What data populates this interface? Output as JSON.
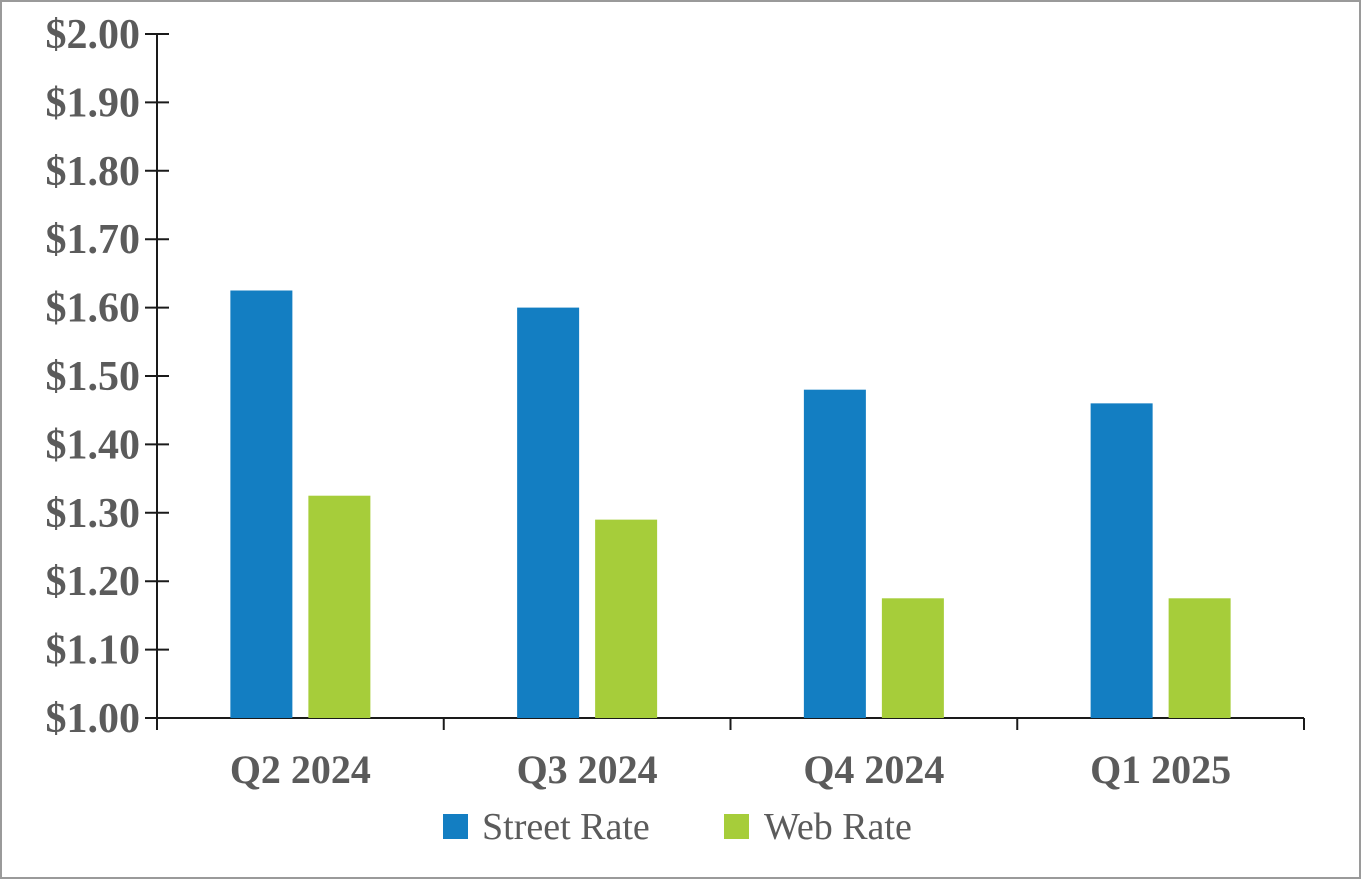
{
  "chart_data": {
    "type": "bar",
    "categories": [
      "Q2 2024",
      "Q3 2024",
      "Q4 2024",
      "Q1 2025"
    ],
    "series": [
      {
        "name": "Street Rate",
        "values": [
          1.625,
          1.6,
          1.48,
          1.46
        ],
        "color": "#137ec2"
      },
      {
        "name": "Web Rate",
        "values": [
          1.325,
          1.29,
          1.175,
          1.175
        ],
        "color": "#a6cd3a"
      }
    ],
    "y_ticks": [
      "$1.00",
      "$1.10",
      "$1.20",
      "$1.30",
      "$1.40",
      "$1.50",
      "$1.60",
      "$1.70",
      "$1.80",
      "$1.90",
      "$2.00"
    ],
    "ylim": [
      1.0,
      2.0
    ],
    "title": "",
    "xlabel": "",
    "ylabel": "",
    "grid": false,
    "legend_position": "bottom"
  }
}
